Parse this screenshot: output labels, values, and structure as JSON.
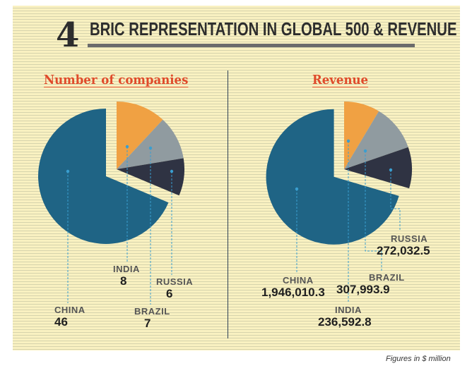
{
  "header": {
    "number": "4",
    "title": "BRIC REPRESENTATION IN GLOBAL 500 & REVENUE"
  },
  "footnote": "Figures in $ million",
  "colors": {
    "China": "#1f6485",
    "India": "#f0a143",
    "Brazil": "#909ba0",
    "Russia": "#2f3343",
    "accent": "#e04a2a",
    "background": "#f9f1c1"
  },
  "chart_data": [
    {
      "type": "pie",
      "title": "Number of companies",
      "categories": [
        "CHINA",
        "INDIA",
        "BRAZIL",
        "RUSSIA"
      ],
      "values": [
        46,
        8,
        7,
        6
      ],
      "value_labels": [
        "46",
        "8",
        "7",
        "6"
      ],
      "exploded": "CHINA"
    },
    {
      "type": "pie",
      "title": "Revenue",
      "categories": [
        "CHINA",
        "INDIA",
        "BRAZIL",
        "RUSSIA"
      ],
      "values": [
        1946010.3,
        236592.8,
        307993.9,
        272032.5
      ],
      "value_labels": [
        "1,946,010.3",
        "236,592.8",
        "307,993.9",
        "272,032.5"
      ],
      "exploded": "CHINA"
    }
  ]
}
